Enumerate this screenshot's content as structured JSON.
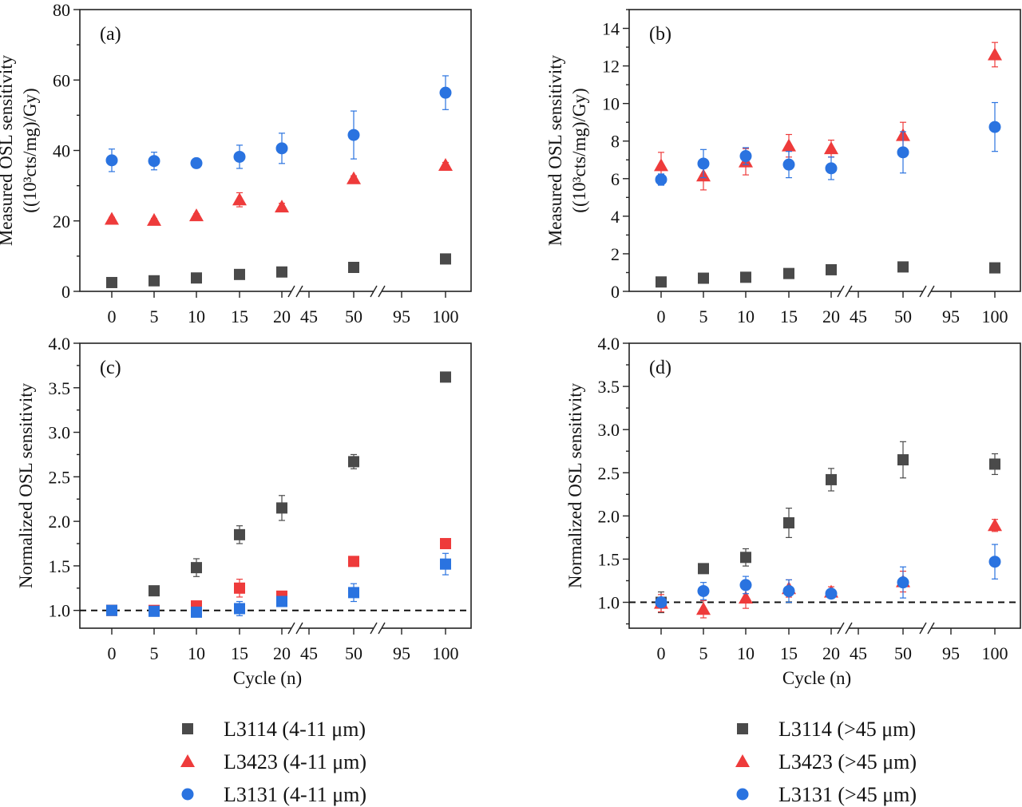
{
  "figure": {
    "legend_left": [
      {
        "label": "L3114 (4-11 μm)",
        "marker": "square",
        "color": "#4a4a4a"
      },
      {
        "label": "L3423 (4-11 μm)",
        "marker": "triangle",
        "color": "#ee3b3b"
      },
      {
        "label": "L3131 (4-11 μm)",
        "marker": "circle",
        "color": "#2a73e0"
      }
    ],
    "legend_right": [
      {
        "label": "L3114 (>45 μm)",
        "marker": "square",
        "color": "#4a4a4a"
      },
      {
        "label": "L3423 (>45 μm)",
        "marker": "triangle",
        "color": "#ee3b3b"
      },
      {
        "label": "L3131 (>45 μm)",
        "marker": "circle",
        "color": "#2a73e0"
      }
    ]
  },
  "chart_data": [
    {
      "type": "scatter",
      "panel_label": "(a)",
      "xlabel": "",
      "ylabel_line1": "Measured OSL sensitivity",
      "ylabel_line2": "((10³cts/mg)/Gy)",
      "ylim": [
        0,
        80
      ],
      "yticks": [
        0,
        20,
        40,
        60,
        80
      ],
      "xtick_labels": [
        "0",
        "5",
        "10",
        "15",
        "20",
        "45",
        "50",
        "95",
        "100"
      ],
      "x": [
        0,
        5,
        10,
        15,
        20,
        50,
        100
      ],
      "series": [
        {
          "marker": "square",
          "color": "#4a4a4a",
          "values": [
            2.5,
            3.0,
            3.8,
            4.8,
            5.5,
            6.8,
            9.2
          ],
          "errors": [
            0.3,
            0.3,
            0.4,
            0.4,
            0.5,
            0.6,
            0.7
          ]
        },
        {
          "marker": "triangle",
          "color": "#ee3b3b",
          "values": [
            20.5,
            20.2,
            21.5,
            26.0,
            24.0,
            32.0,
            35.8
          ],
          "errors": [
            0.5,
            0.5,
            0.5,
            2.0,
            1.0,
            0.8,
            0.8
          ]
        },
        {
          "marker": "circle",
          "color": "#2a73e0",
          "values": [
            37.2,
            37.0,
            36.4,
            38.2,
            40.6,
            44.4,
            56.4
          ],
          "errors": [
            3.2,
            2.5,
            1.0,
            3.3,
            4.3,
            6.8,
            4.8
          ]
        }
      ]
    },
    {
      "type": "scatter",
      "panel_label": "(b)",
      "xlabel": "",
      "ylabel_line1": "Measured OSL sensitivity",
      "ylabel_line2": "((10³cts/mg)/Gy)",
      "ylim": [
        0,
        15
      ],
      "yticks": [
        0,
        2,
        4,
        6,
        8,
        10,
        12,
        14
      ],
      "xtick_labels": [
        "0",
        "5",
        "10",
        "15",
        "20",
        "45",
        "50",
        "95",
        "100"
      ],
      "x": [
        0,
        5,
        10,
        15,
        20,
        50,
        100
      ],
      "series": [
        {
          "marker": "square",
          "color": "#4a4a4a",
          "values": [
            0.5,
            0.7,
            0.75,
            0.95,
            1.15,
            1.3,
            1.25
          ],
          "errors": [
            0.08,
            0.08,
            0.08,
            0.1,
            0.12,
            0.12,
            0.12
          ]
        },
        {
          "marker": "triangle",
          "color": "#ee3b3b",
          "values": [
            6.7,
            6.15,
            6.9,
            7.75,
            7.6,
            8.3,
            12.6
          ],
          "errors": [
            0.7,
            0.75,
            0.7,
            0.6,
            0.45,
            0.7,
            0.65
          ]
        },
        {
          "marker": "circle",
          "color": "#2a73e0",
          "values": [
            5.95,
            6.8,
            7.2,
            6.75,
            6.55,
            7.4,
            8.75
          ],
          "errors": [
            0.3,
            0.75,
            0.45,
            0.7,
            0.6,
            1.1,
            1.3
          ]
        }
      ]
    },
    {
      "type": "scatter",
      "panel_label": "(c)",
      "xlabel": "Cycle (n)",
      "ylabel_line1": "Normalized OSL sensitivity",
      "ylabel_line2": "",
      "ylim": [
        0.8,
        4.0
      ],
      "yticks": [
        1.0,
        1.5,
        2.0,
        2.5,
        3.0,
        3.5,
        4.0
      ],
      "reference_line": 1.0,
      "xtick_labels": [
        "0",
        "5",
        "10",
        "15",
        "20",
        "45",
        "50",
        "95",
        "100"
      ],
      "x": [
        0,
        5,
        10,
        15,
        20,
        50,
        100
      ],
      "series": [
        {
          "marker": "square",
          "color": "#4a4a4a",
          "values": [
            1.0,
            1.22,
            1.48,
            1.85,
            2.15,
            2.67,
            3.62
          ],
          "errors": [
            0.03,
            0.04,
            0.1,
            0.1,
            0.14,
            0.08,
            0.04
          ]
        },
        {
          "marker": "square",
          "color": "#ee3b3b",
          "values": [
            1.0,
            1.0,
            1.05,
            1.25,
            1.16,
            1.55,
            1.75
          ],
          "errors": [
            0.02,
            0.03,
            0.03,
            0.1,
            0.03,
            0.04,
            0.03
          ]
        },
        {
          "marker": "square",
          "color": "#2a73e0",
          "values": [
            1.0,
            0.99,
            0.98,
            1.02,
            1.1,
            1.2,
            1.52
          ],
          "errors": [
            0.02,
            0.03,
            0.03,
            0.08,
            0.05,
            0.1,
            0.12
          ]
        }
      ]
    },
    {
      "type": "scatter",
      "panel_label": "(d)",
      "xlabel": "Cycle (n)",
      "ylabel_line1": "Normalized OSL sensitivity",
      "ylabel_line2": "",
      "ylim": [
        0.7,
        4.0
      ],
      "yticks": [
        1.0,
        1.5,
        2.0,
        2.5,
        3.0,
        3.5,
        4.0
      ],
      "reference_line": 1.0,
      "xtick_labels": [
        "0",
        "5",
        "10",
        "15",
        "20",
        "45",
        "50",
        "95",
        "100"
      ],
      "x": [
        0,
        5,
        10,
        15,
        20,
        50,
        100
      ],
      "series": [
        {
          "marker": "square",
          "color": "#4a4a4a",
          "values": [
            1.0,
            1.39,
            1.52,
            1.92,
            2.42,
            2.65,
            2.6
          ],
          "errors": [
            0.12,
            0.05,
            0.1,
            0.17,
            0.13,
            0.21,
            0.12
          ]
        },
        {
          "marker": "triangle",
          "color": "#ee3b3b",
          "values": [
            0.99,
            0.92,
            1.05,
            1.16,
            1.12,
            1.24,
            1.89
          ],
          "errors": [
            0.1,
            0.1,
            0.12,
            0.1,
            0.06,
            0.12,
            0.07
          ]
        },
        {
          "marker": "circle",
          "color": "#2a73e0",
          "values": [
            1.0,
            1.13,
            1.2,
            1.13,
            1.1,
            1.23,
            1.47
          ],
          "errors": [
            0.05,
            0.1,
            0.1,
            0.13,
            0.04,
            0.18,
            0.2
          ]
        }
      ]
    }
  ]
}
